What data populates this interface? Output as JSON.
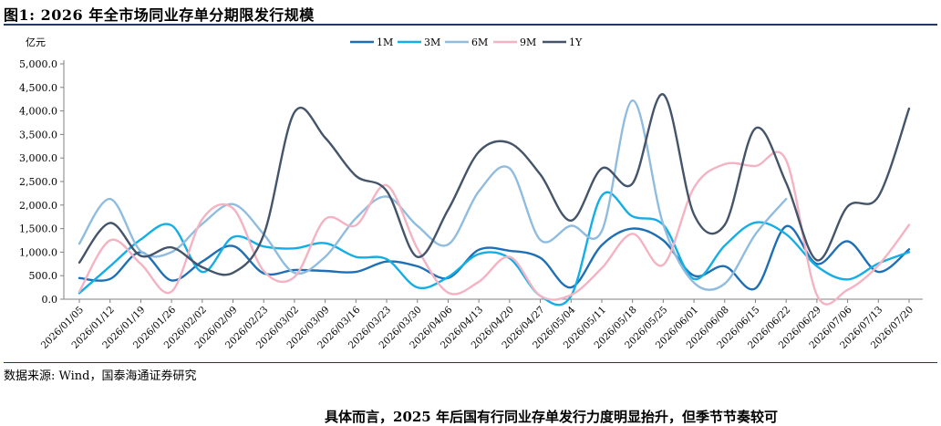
{
  "figure": {
    "title": "图1:  2026 年全市场同业存单分期限发行规模",
    "source": "数据来源:  Wind，国泰海通证券研究",
    "footer": "具体而言，2025 年后国有行同业存单发行力度明显抬升，但季节节奏较可"
  },
  "chart_data": {
    "type": "line",
    "title": "",
    "xlabel": "",
    "ylabel": "亿元",
    "ylim": [
      0,
      5000
    ],
    "yticks": [
      0,
      500,
      1000,
      1500,
      2000,
      2500,
      3000,
      3500,
      4000,
      4500,
      5000
    ],
    "ytick_labels": [
      "0.0",
      "500.0",
      "1,000.0",
      "1,500.0",
      "2,000.0",
      "2,500.0",
      "3,000.0",
      "3,500.0",
      "4,000.0",
      "4,500.0",
      "5,000.0"
    ],
    "grid": false,
    "legend_position": "top",
    "x": [
      "2026/01/05",
      "2026/01/12",
      "2026/01/19",
      "2026/01/26",
      "2026/02/02",
      "2026/02/09",
      "2026/02/23",
      "2026/03/02",
      "2026/03/09",
      "2026/03/16",
      "2026/03/23",
      "2026/03/30",
      "2026/04/06",
      "2026/04/13",
      "2026/04/20",
      "2026/04/27",
      "2026/05/04",
      "2026/05/11",
      "2026/05/18",
      "2026/05/25",
      "2026/06/01",
      "2026/06/08",
      "2026/06/15",
      "2026/06/22",
      "2026/06/29",
      "2026/07/06",
      "2026/07/13",
      "2026/07/20"
    ],
    "series": [
      {
        "name": "1M",
        "color": "#1f6fb5",
        "values": [
          450,
          430,
          1000,
          400,
          800,
          1130,
          550,
          620,
          600,
          580,
          800,
          700,
          450,
          1050,
          1030,
          880,
          250,
          1150,
          1500,
          1250,
          500,
          700,
          230,
          1550,
          750,
          1230,
          580,
          1060
        ]
      },
      {
        "name": "3M",
        "color": "#14aee6",
        "values": [
          130,
          700,
          1270,
          1570,
          580,
          1320,
          1120,
          1080,
          1190,
          900,
          850,
          250,
          470,
          960,
          870,
          70,
          70,
          2200,
          1760,
          1580,
          430,
          1140,
          1630,
          1380,
          700,
          420,
          760,
          1000
        ]
      },
      {
        "name": "6M",
        "color": "#8fbcdf",
        "values": [
          1180,
          2130,
          1020,
          1000,
          1600,
          2020,
          1380,
          560,
          900,
          1720,
          2180,
          1560,
          1160,
          2290,
          2780,
          1260,
          1560,
          1450,
          4220,
          1590,
          350,
          330,
          1380,
          2130,
          null,
          null,
          null,
          null
        ]
      },
      {
        "name": "9M",
        "color": "#f4b3c2",
        "values": [
          160,
          1250,
          750,
          160,
          1700,
          1930,
          600,
          470,
          1700,
          1570,
          2420,
          1080,
          140,
          370,
          900,
          70,
          90,
          660,
          1390,
          730,
          2370,
          2870,
          2830,
          2950,
          90,
          200,
          720,
          1580
        ]
      },
      {
        "name": "1Y",
        "color": "#44546a",
        "values": [
          780,
          1620,
          920,
          1100,
          680,
          560,
          1370,
          3970,
          3430,
          2620,
          2300,
          900,
          1900,
          3130,
          3320,
          2650,
          1670,
          2780,
          2460,
          4350,
          1800,
          1580,
          3630,
          2470,
          830,
          1970,
          2180,
          4050
        ]
      }
    ]
  }
}
